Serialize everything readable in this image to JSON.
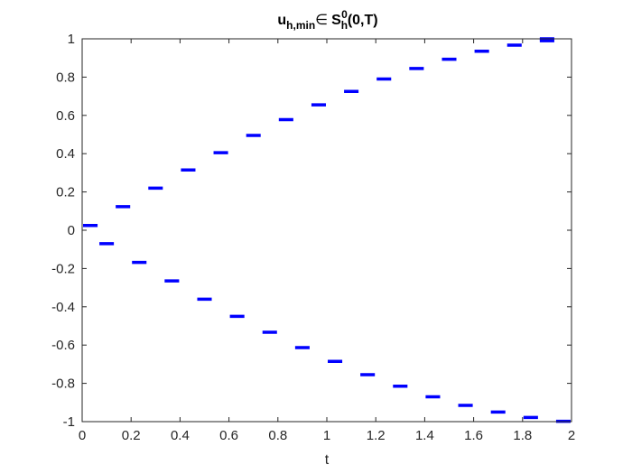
{
  "chart_data": {
    "type": "scatter",
    "title": {
      "u": "u",
      "u_sub": "h,min",
      "in_symbol": "∈",
      "s": "S",
      "s_sub": "h",
      "s_sup": "0",
      "args": "(0,T)"
    },
    "xlabel": "t",
    "ylabel": "",
    "xlim": [
      0,
      2
    ],
    "ylim": [
      -1,
      1
    ],
    "x_ticks": [
      0,
      0.2,
      0.4,
      0.6,
      0.8,
      1,
      1.2,
      1.4,
      1.6,
      1.8,
      2
    ],
    "x_tick_labels": [
      "0",
      "0.2",
      "0.4",
      "0.6",
      "0.8",
      "1",
      "1.2",
      "1.4",
      "1.6",
      "1.8",
      "2"
    ],
    "y_ticks": [
      1,
      0.8,
      0.6,
      0.4,
      0.2,
      0,
      -0.2,
      -0.4,
      -0.6,
      -0.8,
      -1
    ],
    "y_tick_labels": [
      "1",
      "0.8",
      "0.6",
      "0.4",
      "0.2",
      "0",
      "-0.2",
      "-0.4",
      "-0.6",
      "-0.8",
      "-1"
    ],
    "grid": false,
    "marker": "horizontal segment per interval (piecewise constant, degree 0)",
    "series_color": "#0000ff",
    "series": [
      {
        "x_start": [
          0,
          0.1333,
          0.2667,
          0.4,
          0.5333,
          0.6667,
          0.8,
          0.9333,
          1.0667,
          1.2,
          1.3333,
          1.4667,
          1.6,
          1.7333,
          1.8667
        ],
        "x_end": [
          0.0667,
          0.2,
          0.3333,
          0.4667,
          0.6,
          0.7333,
          0.8667,
          1.0,
          1.1333,
          1.2667,
          1.4,
          1.5333,
          1.6667,
          1.8,
          1.9333
        ],
        "y": [
          0.025,
          0.123,
          0.22,
          0.315,
          0.405,
          0.495,
          0.578,
          0.655,
          0.725,
          0.79,
          0.845,
          0.893,
          0.935,
          0.967,
          0.99
        ]
      },
      {
        "x_start": [
          0.0667,
          0.2,
          0.3333,
          0.4667,
          0.6,
          0.7333,
          0.8667,
          1.0,
          1.1333,
          1.2667,
          1.4,
          1.5333,
          1.6667,
          1.8,
          1.9333
        ],
        "x_end": [
          0.1333,
          0.2667,
          0.4,
          0.5333,
          0.6667,
          0.8,
          0.9333,
          1.0667,
          1.2,
          1.3333,
          1.4667,
          1.6,
          1.7333,
          1.8667,
          2.0
        ],
        "y": [
          -0.07,
          -0.168,
          -0.265,
          -0.36,
          -0.45,
          -0.533,
          -0.613,
          -0.685,
          -0.755,
          -0.815,
          -0.87,
          -0.915,
          -0.95,
          -0.978,
          -0.998
        ]
      },
      {
        "x_start": [
          1.8667
        ],
        "x_end": [
          1.9333
        ],
        "y": [
          1.0
        ]
      }
    ]
  }
}
